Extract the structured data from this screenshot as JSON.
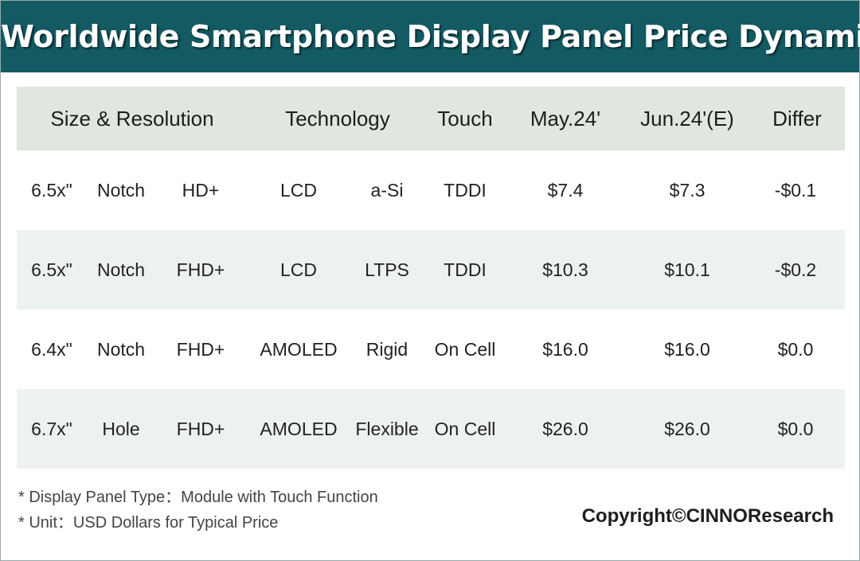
{
  "title": "Worldwide Smartphone Display Panel Price Dynamic",
  "chart_data": {
    "type": "table",
    "columns": [
      "Size & Resolution",
      "Technology",
      "Touch",
      "May.24'",
      "Jun.24'(E)",
      "Differ"
    ],
    "rows": [
      {
        "size": "6.5x\"",
        "shape": "Notch",
        "resolution": "HD+",
        "technology": "LCD",
        "backplane": "a-Si",
        "touch": "TDDI",
        "may": "$7.4",
        "jun": "$7.3",
        "differ": "-$0.1"
      },
      {
        "size": "6.5x\"",
        "shape": "Notch",
        "resolution": "FHD+",
        "technology": "LCD",
        "backplane": "LTPS",
        "touch": "TDDI",
        "may": "$10.3",
        "jun": "$10.1",
        "differ": "-$0.2"
      },
      {
        "size": "6.4x\"",
        "shape": "Notch",
        "resolution": "FHD+",
        "technology": "AMOLED",
        "backplane": "Rigid",
        "touch": "On Cell",
        "may": "$16.0",
        "jun": "$16.0",
        "differ": "$0.0"
      },
      {
        "size": "6.7x\"",
        "shape": "Hole",
        "resolution": "FHD+",
        "technology": "AMOLED",
        "backplane": "Flexible",
        "touch": "On Cell",
        "may": "$26.0",
        "jun": "$26.0",
        "differ": "$0.0"
      }
    ]
  },
  "notes": [
    "* Display Panel Type：Module with Touch Function",
    "* Unit：USD Dollars for Typical Price"
  ],
  "copyright": "Copyright©CINNOResearch",
  "colors": {
    "banner": "#135a63",
    "header_row": "#dfe7df",
    "alt_row": "#eef2ee"
  }
}
